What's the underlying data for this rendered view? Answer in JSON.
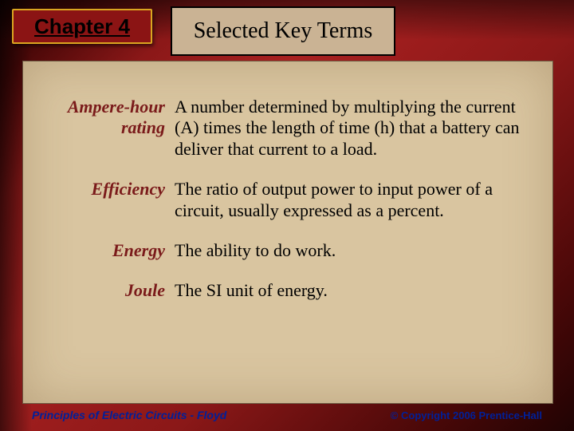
{
  "chapter_badge": "Chapter 4",
  "title": "Selected Key Terms",
  "terms": [
    {
      "name": "Ampere-hour rating",
      "def": "A number determined by multiplying the current (A) times the length of time (h) that a battery can deliver that current to a load."
    },
    {
      "name": "Efficiency",
      "def": "The ratio of output power to input power of a circuit, usually expressed as a percent."
    },
    {
      "name": "Energy",
      "def": "The ability to do work."
    },
    {
      "name": "Joule",
      "def": "The SI unit of energy."
    }
  ],
  "footer": {
    "left": "Principles of Electric Circuits - Floyd",
    "right": "© Copyright 2006 Prentice-Hall"
  },
  "colors": {
    "badge_bg": "#8b1414",
    "badge_border": "#daa520",
    "title_bg": "#cab394",
    "content_bg": "#d9c5a0",
    "term_color": "#7a1a1a",
    "def_color": "#000000",
    "footer_color": "#00209a"
  }
}
